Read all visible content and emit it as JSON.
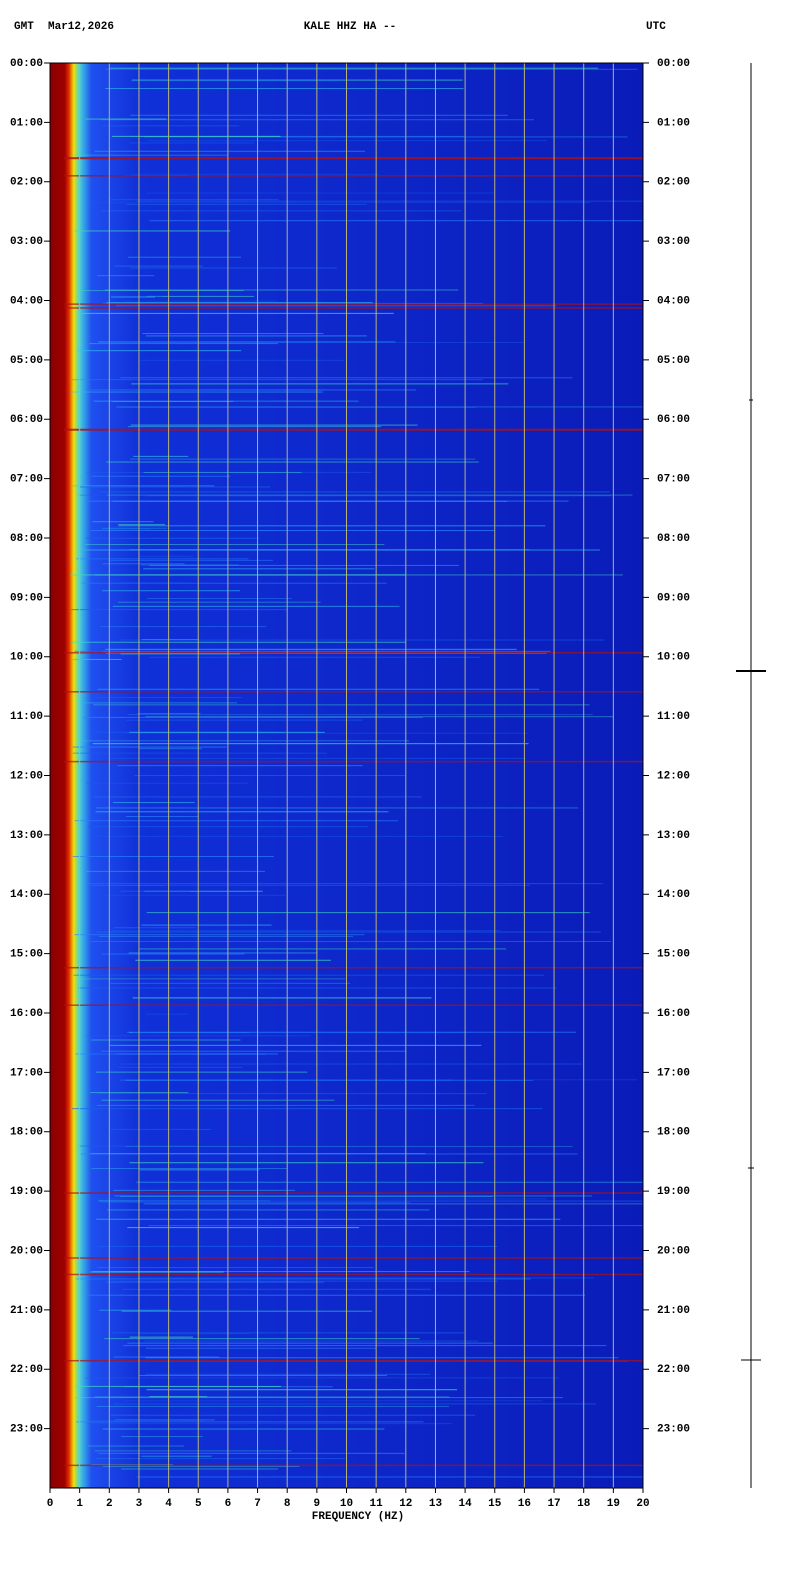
{
  "chart_data": {
    "type": "spectrogram",
    "header": {
      "left_zone": "GMT",
      "date": "Mar12,2026",
      "station": "KALE HHZ HA --",
      "right_zone": "UTC"
    },
    "xlabel": "FREQUENCY (HZ)",
    "xlim": [
      0,
      20
    ],
    "xticks": [
      0,
      1,
      2,
      3,
      4,
      5,
      6,
      7,
      8,
      9,
      10,
      11,
      12,
      13,
      14,
      15,
      16,
      17,
      18,
      19,
      20
    ],
    "ylim": [
      0,
      24
    ],
    "yticks": [
      {
        "value": 0,
        "label": "00:00"
      },
      {
        "value": 1,
        "label": "01:00"
      },
      {
        "value": 2,
        "label": "02:00"
      },
      {
        "value": 3,
        "label": "03:00"
      },
      {
        "value": 4,
        "label": "04:00"
      },
      {
        "value": 5,
        "label": "05:00"
      },
      {
        "value": 6,
        "label": "06:00"
      },
      {
        "value": 7,
        "label": "07:00"
      },
      {
        "value": 8,
        "label": "08:00"
      },
      {
        "value": 9,
        "label": "09:00"
      },
      {
        "value": 10,
        "label": "10:00"
      },
      {
        "value": 11,
        "label": "11:00"
      },
      {
        "value": 12,
        "label": "12:00"
      },
      {
        "value": 13,
        "label": "13:00"
      },
      {
        "value": 14,
        "label": "14:00"
      },
      {
        "value": 15,
        "label": "15:00"
      },
      {
        "value": 16,
        "label": "16:00"
      },
      {
        "value": 17,
        "label": "17:00"
      },
      {
        "value": 18,
        "label": "18:00"
      },
      {
        "value": 19,
        "label": "19:00"
      },
      {
        "value": 20,
        "label": "20:00"
      },
      {
        "value": 21,
        "label": "21:00"
      },
      {
        "value": 22,
        "label": "22:00"
      },
      {
        "value": 23,
        "label": "23:00"
      }
    ],
    "grid": true,
    "grid_color": "#b8b478"
  }
}
